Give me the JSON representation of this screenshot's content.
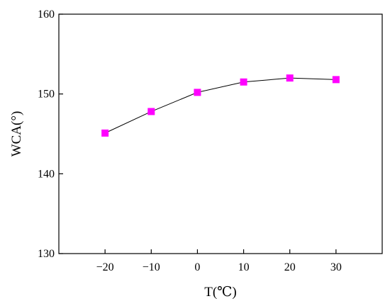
{
  "chart_data": {
    "type": "line",
    "xlabel": "T(℃)",
    "ylabel": "WCA(°)",
    "x": [
      -20,
      -10,
      0,
      10,
      20,
      30
    ],
    "series": [
      {
        "values": [
          145.1,
          147.8,
          150.2,
          151.5,
          152.0,
          151.8
        ]
      }
    ],
    "xlim": [
      -30,
      40
    ],
    "ylim": [
      130,
      160
    ],
    "xticks": [
      -20,
      -10,
      0,
      10,
      20,
      30
    ],
    "xtick_labels": [
      "−20",
      "−10",
      "0",
      "10",
      "20",
      "30"
    ],
    "yticks": [
      130,
      140,
      150,
      160
    ],
    "ytick_labels": [
      "130",
      "140",
      "150",
      "160"
    ],
    "grid": false,
    "legend": "none",
    "marker": "square",
    "marker_color": "#ff00ff",
    "line_color": "#000000"
  }
}
